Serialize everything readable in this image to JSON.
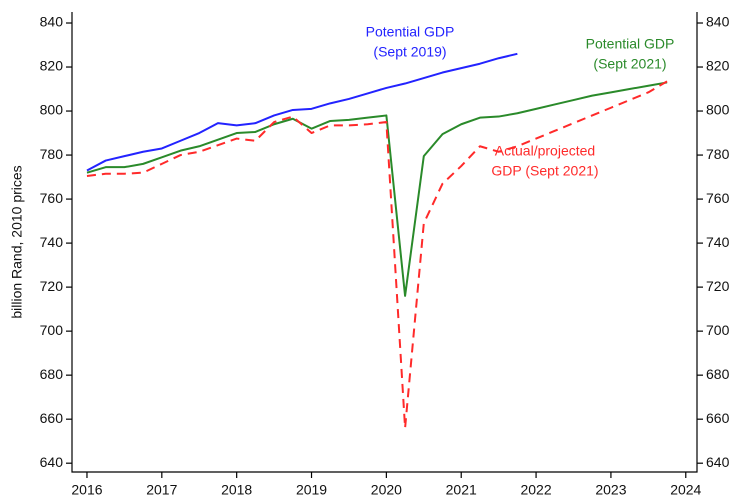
{
  "chart_data": {
    "type": "line",
    "y_label": "billion Rand, 2010 prices",
    "x": [
      2016.0,
      2016.25,
      2016.5,
      2016.75,
      2017.0,
      2017.25,
      2017.5,
      2017.75,
      2018.0,
      2018.25,
      2018.5,
      2018.75,
      2019.0,
      2019.25,
      2019.5,
      2019.75,
      2020.0,
      2020.25,
      2020.5,
      2020.75,
      2021.0,
      2021.25,
      2021.5,
      2021.75,
      2022.0,
      2022.25,
      2022.5,
      2022.75,
      2023.0,
      2023.25,
      2023.5,
      2023.75
    ],
    "series": [
      {
        "name": "Potential GDP (Sept 2019)",
        "color": "#2323ff",
        "linestyle": "solid",
        "values": [
          773,
          777.5,
          779.5,
          781.5,
          783,
          786.5,
          790,
          794.5,
          793.5,
          794.5,
          798,
          800.5,
          801,
          803.5,
          805.5,
          808,
          810.5,
          812.5,
          815,
          817.5,
          819.5,
          821.5,
          824,
          826,
          null,
          null,
          null,
          null,
          null,
          null,
          null,
          null
        ]
      },
      {
        "name": "Potential GDP (Sept 2021)",
        "color": "#2a8a2a",
        "linestyle": "solid",
        "values": [
          772,
          774.5,
          774.5,
          776,
          779,
          782,
          784,
          787,
          790,
          790.5,
          794,
          796.5,
          792,
          795.5,
          796,
          797,
          798,
          716,
          779.5,
          789.5,
          794,
          797,
          797.5,
          799,
          801,
          803,
          805,
          807,
          808.5,
          810,
          811.5,
          813
        ]
      },
      {
        "name": "Actual/projected GDP (Sept 2021)",
        "color": "#ff2a2a",
        "linestyle": "dashed",
        "values": [
          770.5,
          771.5,
          771.5,
          772,
          776,
          780,
          781.5,
          784.5,
          787.5,
          786.5,
          795,
          797.5,
          790,
          793.5,
          793.5,
          794,
          795,
          656,
          749,
          767,
          775,
          784,
          781.5,
          784,
          787.5,
          791,
          794.5,
          798,
          801.5,
          805,
          808.5,
          813.5
        ]
      }
    ],
    "annotations": [
      [
        "Potential GDP",
        "(Sept 2019)"
      ],
      [
        "Potential GDP",
        "(Sept 2021)"
      ],
      [
        "Actual/projected",
        "GDP (Sept 2021)"
      ]
    ],
    "xlim": [
      2015.8,
      2024.15
    ],
    "xticks": [
      2016,
      2017,
      2018,
      2019,
      2020,
      2021,
      2022,
      2023,
      2024
    ],
    "ylim": [
      636,
      845
    ],
    "yticks": [
      640,
      660,
      680,
      700,
      720,
      740,
      760,
      780,
      800,
      820,
      840
    ],
    "y2lim": [
      636,
      845
    ],
    "y2ticks": [
      640,
      660,
      680,
      700,
      720,
      740,
      760,
      780,
      800,
      820,
      840
    ],
    "grid": false
  }
}
